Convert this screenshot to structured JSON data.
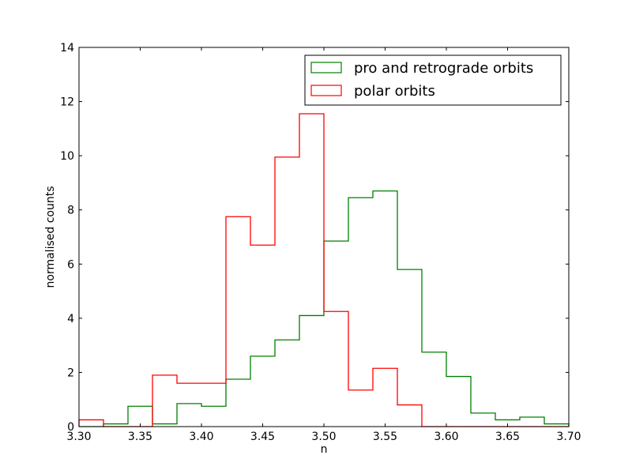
{
  "chart_data": {
    "type": "histogram",
    "title": "",
    "xlabel": "n",
    "ylabel": "normalised counts",
    "xlim": [
      3.3,
      3.7
    ],
    "ylim": [
      0,
      14
    ],
    "x_ticks": [
      "3.30",
      "3.35",
      "3.40",
      "3.45",
      "3.50",
      "3.55",
      "3.60",
      "3.65",
      "3.70"
    ],
    "y_ticks": [
      "0",
      "2",
      "4",
      "6",
      "8",
      "10",
      "12",
      "14"
    ],
    "legend_position": "top-right",
    "bin_edges": [
      3.3,
      3.32,
      3.34,
      3.36,
      3.38,
      3.4,
      3.42,
      3.44,
      3.46,
      3.48,
      3.5,
      3.52,
      3.54,
      3.56,
      3.58,
      3.6,
      3.62,
      3.64,
      3.66,
      3.68,
      3.7
    ],
    "series": [
      {
        "name": "pro and retrograde orbits",
        "color": "#008000",
        "values": [
          0.0,
          0.1,
          0.75,
          0.1,
          0.85,
          0.75,
          1.75,
          2.6,
          3.2,
          4.1,
          6.85,
          8.45,
          8.7,
          5.8,
          2.75,
          1.85,
          0.5,
          0.25,
          0.35,
          0.1
        ]
      },
      {
        "name": "polar orbits",
        "color": "#ff0000",
        "values": [
          0.25,
          0.0,
          0.0,
          1.9,
          1.6,
          1.6,
          7.75,
          6.7,
          9.95,
          11.55,
          4.25,
          1.35,
          2.15,
          0.8,
          0.0,
          0.0,
          0.0,
          0.0,
          0.0,
          0.0
        ]
      }
    ]
  }
}
